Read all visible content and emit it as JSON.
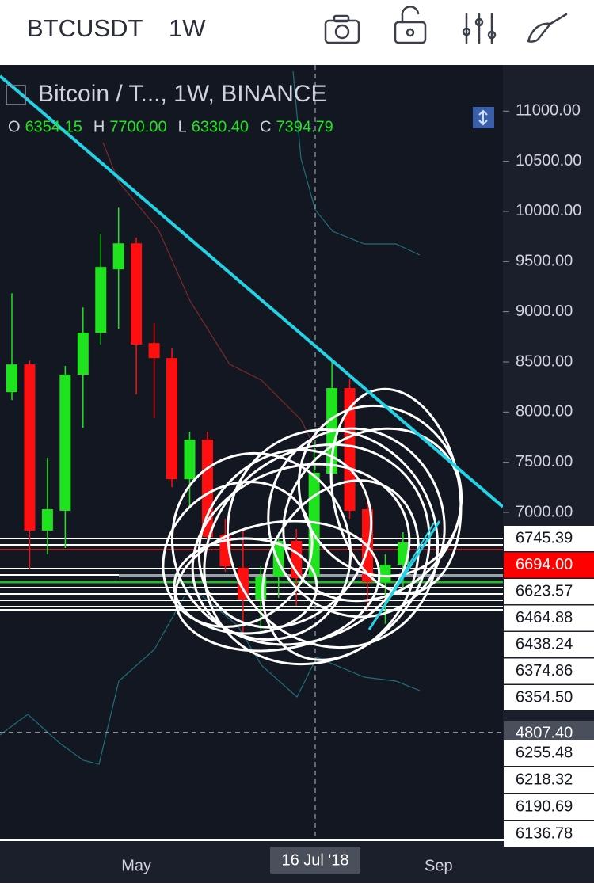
{
  "header": {
    "symbol": "BTCUSDT",
    "interval": "1W"
  },
  "chart_data": {
    "type": "candlestick",
    "title": "Bitcoin / T..., 1W, BINANCE",
    "ohlc_labels": [
      "O",
      "H",
      "L",
      "C"
    ],
    "ohlc_values": [
      "6354.15",
      "7700.00",
      "6330.40",
      "7394.79"
    ],
    "categories": [
      null,
      null,
      null,
      null,
      null,
      null,
      null,
      "May",
      null,
      null,
      null,
      null,
      null,
      null,
      null,
      null,
      null,
      null,
      null,
      null,
      null,
      null,
      null,
      null,
      "Sep"
    ],
    "open": [
      8199,
      8475,
      6819,
      7016,
      8373,
      8791,
      9422,
      9682,
      8688,
      8538,
      7331,
      7726,
      6779,
      6448,
      6132,
      6361,
      6716,
      6354.15,
      7387,
      8239,
      7032,
      6306,
      6479,
      null,
      null
    ],
    "high": [
      9185,
      8515,
      7544,
      8460,
      9043,
      9777,
      10037,
      9738,
      8886,
      8633,
      7805,
      7805,
      6937,
      6819,
      6463,
      6803,
      6834,
      7700,
      8515,
      8333,
      7174,
      6582,
      6803,
      null,
      null
    ],
    "low": [
      8120,
      6440,
      6582,
      6645,
      7844,
      8673,
      8830,
      8176,
      7939,
      7252,
      7055,
      6661,
      6408,
      5753,
      5832,
      6148,
      6069,
      6330.4,
      7308,
      6937,
      6030,
      5888,
      6227,
      null,
      null
    ],
    "close": [
      8475,
      6819,
      7032,
      8373,
      8791,
      9446,
      9682,
      8673,
      8538,
      7331,
      7726,
      6755,
      6463,
      6132,
      6361,
      6716,
      6345,
      7394.79,
      8239,
      7016,
      6306,
      6479,
      6700,
      null,
      null
    ],
    "up_color": "#1ee31e",
    "down_color": "#ff0f0f",
    "ylim": [
      3740,
      11460
    ],
    "yticks": [
      {
        "value": 11000,
        "label": "11000.00"
      },
      {
        "value": 10500,
        "label": "10500.00"
      },
      {
        "value": 10000,
        "label": "10000.00"
      },
      {
        "value": 9500,
        "label": "9500.00"
      },
      {
        "value": 9000,
        "label": "9000.00"
      },
      {
        "value": 8500,
        "label": "8500.00"
      },
      {
        "value": 8000,
        "label": "8000.00"
      },
      {
        "value": 7500,
        "label": "7500.00"
      },
      {
        "value": 7000,
        "label": "7000.00"
      }
    ],
    "price_labels_top": [
      "6745.39"
    ],
    "last_price": "6694.00",
    "price_labels_mid": [
      "6623.57",
      "6464.88",
      "6438.24",
      "6374.86",
      "6354.50"
    ],
    "crosshair_y": {
      "value": 4807.4,
      "label": "4807.40"
    },
    "price_labels_bottom": [
      "6255.48",
      "6218.32",
      "6190.69",
      "6136.78"
    ],
    "crosshair_x_label": "16 Jul '18"
  }
}
